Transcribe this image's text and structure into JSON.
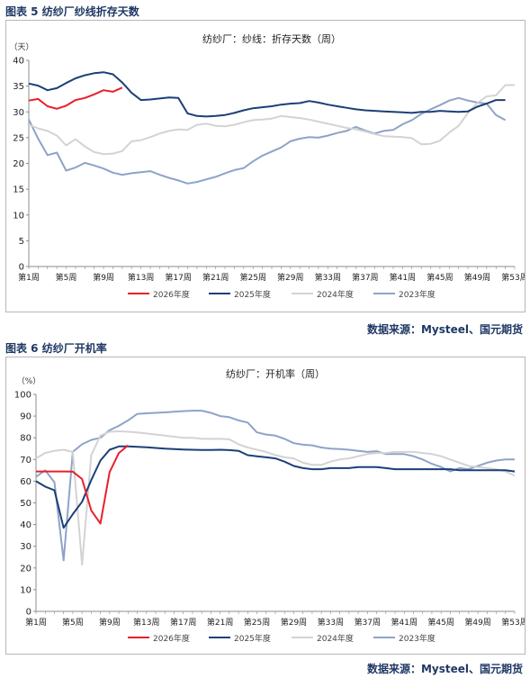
{
  "figures": [
    {
      "caption": "图表 5 纺纱厂纱线折存天数",
      "source": "数据来源：Mysteel、国元期货"
    },
    {
      "caption": "图表 6 纺纱厂开机率",
      "source": "数据来源：Mysteel、国元期货"
    }
  ],
  "chart_data": [
    {
      "type": "line",
      "title": "纺纱厂：纱线：折存天数（周）",
      "ylabel": "（天）",
      "xlabel": "",
      "ylim": [
        0,
        40
      ],
      "yticks": [
        0,
        5,
        10,
        15,
        20,
        25,
        30,
        35,
        40
      ],
      "xlim": [
        1,
        53
      ],
      "x_tick_labels": [
        "第1周",
        "第5周",
        "第9周",
        "第13周",
        "第17周",
        "第21周",
        "第25周",
        "第29周",
        "第33周",
        "第37周",
        "第41周",
        "第45周",
        "第49周",
        "第53周"
      ],
      "x_tick_weeks": [
        1,
        5,
        9,
        13,
        17,
        21,
        25,
        29,
        33,
        37,
        41,
        45,
        49,
        53
      ],
      "grid": false,
      "legend_position": "bottom",
      "series": [
        {
          "name": "2026年度",
          "color": "#e8202a",
          "x": [
            1,
            2,
            3,
            4,
            5,
            6,
            7,
            8,
            9,
            10,
            11
          ],
          "values": [
            32.2,
            32.5,
            31.1,
            30.6,
            31.2,
            32.3,
            32.7,
            33.4,
            34.2,
            33.9,
            34.7
          ]
        },
        {
          "name": "2025年度",
          "color": "#1c3f77",
          "x": [
            1,
            2,
            3,
            4,
            5,
            6,
            7,
            8,
            9,
            10,
            11,
            12,
            13,
            14,
            15,
            16,
            17,
            18,
            19,
            20,
            21,
            22,
            23,
            24,
            25,
            26,
            27,
            28,
            29,
            30,
            31,
            32,
            33,
            34,
            35,
            36,
            37,
            38,
            39,
            40,
            41,
            42,
            43,
            44,
            45,
            46,
            47,
            48,
            49,
            50,
            51,
            52
          ],
          "values": [
            35.5,
            35.1,
            34.2,
            34.6,
            35.6,
            36.5,
            37.1,
            37.5,
            37.7,
            37.3,
            35.7,
            33.7,
            32.3,
            32.4,
            32.6,
            32.8,
            32.7,
            29.7,
            29.2,
            29.1,
            29.2,
            29.4,
            29.8,
            30.3,
            30.7,
            30.9,
            31.1,
            31.4,
            31.6,
            31.7,
            32.1,
            31.8,
            31.4,
            31.1,
            30.8,
            30.5,
            30.3,
            30.2,
            30.1,
            30.0,
            29.9,
            29.8,
            30.0,
            30.0,
            30.2,
            30.1,
            30.0,
            30.1,
            31.0,
            31.6,
            32.3,
            32.3
          ]
        },
        {
          "name": "2024年度",
          "color": "#d3d3d3",
          "x": [
            1,
            2,
            3,
            4,
            5,
            6,
            7,
            8,
            9,
            10,
            11,
            12,
            13,
            14,
            15,
            16,
            17,
            18,
            19,
            20,
            21,
            22,
            23,
            24,
            25,
            26,
            27,
            28,
            29,
            30,
            31,
            32,
            33,
            34,
            35,
            36,
            37,
            38,
            39,
            40,
            41,
            42,
            43,
            44,
            45,
            46,
            47,
            48,
            49,
            50,
            51,
            52,
            53
          ],
          "values": [
            27.5,
            26.8,
            26.3,
            25.4,
            23.5,
            24.7,
            23.3,
            22.2,
            21.8,
            21.9,
            22.4,
            24.3,
            24.5,
            25.1,
            25.8,
            26.3,
            26.6,
            26.5,
            27.5,
            27.7,
            27.3,
            27.2,
            27.5,
            28.0,
            28.4,
            28.5,
            28.7,
            29.2,
            29.0,
            28.8,
            28.5,
            28.1,
            27.7,
            27.3,
            26.9,
            26.6,
            26.2,
            25.7,
            25.3,
            25.2,
            25.1,
            24.9,
            23.7,
            23.8,
            24.4,
            26.0,
            27.3,
            29.8,
            31.7,
            33.0,
            33.2,
            35.2,
            35.2
          ]
        },
        {
          "name": "2023年度",
          "color": "#8ea3c8",
          "x": [
            1,
            2,
            3,
            4,
            5,
            6,
            7,
            8,
            9,
            10,
            11,
            12,
            13,
            14,
            15,
            16,
            17,
            18,
            19,
            20,
            21,
            22,
            23,
            24,
            25,
            26,
            27,
            28,
            29,
            30,
            31,
            32,
            33,
            34,
            35,
            36,
            37,
            38,
            39,
            40,
            41,
            42,
            43,
            44,
            45,
            46,
            47,
            48,
            49,
            50,
            51,
            52
          ],
          "values": [
            28.5,
            24.8,
            21.6,
            22.1,
            18.6,
            19.2,
            20.1,
            19.6,
            19.0,
            18.2,
            17.8,
            18.1,
            18.3,
            18.5,
            17.8,
            17.2,
            16.7,
            16.1,
            16.4,
            16.9,
            17.4,
            18.1,
            18.7,
            19.1,
            20.4,
            21.5,
            22.3,
            23.1,
            24.3,
            24.8,
            25.1,
            25.0,
            25.4,
            25.9,
            26.3,
            27.1,
            26.4,
            25.8,
            26.3,
            26.5,
            27.6,
            28.4,
            29.6,
            30.5,
            31.3,
            32.2,
            32.7,
            32.2,
            31.8,
            31.6,
            29.4,
            28.4
          ]
        }
      ]
    },
    {
      "type": "line",
      "title": "纺纱厂：开机率（周）",
      "ylabel": "（%）",
      "xlabel": "",
      "ylim": [
        0,
        100
      ],
      "yticks": [
        0,
        10,
        20,
        30,
        40,
        50,
        60,
        70,
        80,
        90,
        100
      ],
      "xlim": [
        1,
        53
      ],
      "x_tick_labels": [
        "第1周",
        "第5周",
        "第9周",
        "第13周",
        "第17周",
        "第21周",
        "第25周",
        "第29周",
        "第33周",
        "第37周",
        "第41周",
        "第45周",
        "第49周",
        "第53周"
      ],
      "x_tick_weeks": [
        1,
        5,
        9,
        13,
        17,
        21,
        25,
        29,
        33,
        37,
        41,
        45,
        49,
        53
      ],
      "grid": false,
      "legend_position": "bottom",
      "series": [
        {
          "name": "2026年度",
          "color": "#e8202a",
          "x": [
            1,
            2,
            3,
            4,
            5,
            6,
            7,
            8,
            9,
            10,
            11
          ],
          "values": [
            64.5,
            64.5,
            64.5,
            64.5,
            64.4,
            61.0,
            46.5,
            40.5,
            64.2,
            73.0,
            76.5
          ]
        },
        {
          "name": "2025年度",
          "color": "#1c3f77",
          "x": [
            1,
            2,
            3,
            4,
            5,
            6,
            7,
            8,
            9,
            10,
            11,
            12,
            13,
            14,
            15,
            16,
            17,
            18,
            19,
            20,
            21,
            22,
            23,
            24,
            25,
            26,
            27,
            28,
            29,
            30,
            31,
            32,
            33,
            34,
            35,
            36,
            37,
            38,
            39,
            40,
            41,
            42,
            43,
            44,
            45,
            46,
            47,
            48,
            49,
            50,
            51,
            52,
            53
          ],
          "values": [
            60.0,
            57.5,
            55.8,
            38.5,
            44.8,
            50.5,
            60.5,
            69.5,
            74.5,
            76.0,
            76.0,
            75.8,
            75.6,
            75.3,
            75.0,
            74.8,
            74.6,
            74.5,
            74.4,
            74.4,
            74.5,
            74.3,
            74.0,
            72.0,
            71.5,
            71.0,
            70.5,
            69.0,
            67.0,
            66.0,
            65.5,
            65.5,
            66.0,
            66.0,
            66.0,
            66.5,
            66.5,
            66.5,
            66.0,
            65.5,
            65.5,
            65.5,
            65.5,
            65.5,
            65.5,
            65.5,
            65.0,
            65.0,
            65.0,
            65.0,
            65.0,
            65.0,
            64.5
          ]
        },
        {
          "name": "2024年度",
          "color": "#d3d3d3",
          "x": [
            1,
            2,
            3,
            4,
            5,
            6,
            7,
            8,
            9,
            10,
            11,
            12,
            13,
            14,
            15,
            16,
            17,
            18,
            19,
            20,
            21,
            22,
            23,
            24,
            25,
            26,
            27,
            28,
            29,
            30,
            31,
            32,
            33,
            34,
            35,
            36,
            37,
            38,
            39,
            40,
            41,
            42,
            43,
            44,
            45,
            46,
            47,
            48,
            49,
            50,
            51,
            52,
            53
          ],
          "values": [
            70.5,
            73.0,
            74.0,
            74.5,
            73.5,
            21.5,
            72.0,
            81.0,
            82.8,
            83.0,
            82.8,
            82.5,
            82.0,
            81.5,
            81.0,
            80.5,
            80.0,
            80.0,
            79.5,
            79.5,
            79.5,
            79.3,
            77.0,
            75.5,
            74.5,
            73.5,
            72.0,
            71.0,
            70.5,
            68.5,
            67.5,
            67.5,
            69.0,
            70.0,
            70.5,
            71.5,
            72.5,
            73.0,
            73.0,
            73.5,
            73.5,
            73.5,
            73.0,
            72.5,
            71.5,
            70.0,
            68.5,
            67.0,
            66.5,
            66.0,
            65.5,
            64.5,
            62.5
          ]
        },
        {
          "name": "2023年度",
          "color": "#8ea3c8",
          "x": [
            1,
            2,
            3,
            4,
            5,
            6,
            7,
            8,
            9,
            10,
            11,
            12,
            13,
            14,
            15,
            16,
            17,
            18,
            19,
            20,
            21,
            22,
            23,
            24,
            25,
            26,
            27,
            28,
            29,
            30,
            31,
            32,
            33,
            34,
            35,
            36,
            37,
            38,
            39,
            40,
            41,
            42,
            43,
            44,
            45,
            46,
            47,
            48,
            49,
            50,
            51,
            52,
            53
          ],
          "values": [
            62.0,
            65.0,
            59.5,
            23.5,
            73.5,
            77.0,
            79.0,
            80.0,
            83.5,
            85.5,
            88.0,
            91.0,
            91.3,
            91.5,
            91.7,
            92.0,
            92.3,
            92.5,
            92.5,
            91.5,
            90.0,
            89.5,
            88.0,
            87.0,
            82.5,
            81.5,
            81.0,
            79.5,
            77.5,
            76.8,
            76.5,
            75.5,
            75.0,
            74.8,
            74.5,
            74.0,
            73.5,
            73.8,
            72.5,
            72.5,
            72.5,
            71.5,
            70.0,
            68.0,
            66.5,
            64.5,
            66.0,
            65.5,
            67.0,
            68.5,
            69.5,
            70.0,
            70.0
          ]
        }
      ]
    }
  ]
}
